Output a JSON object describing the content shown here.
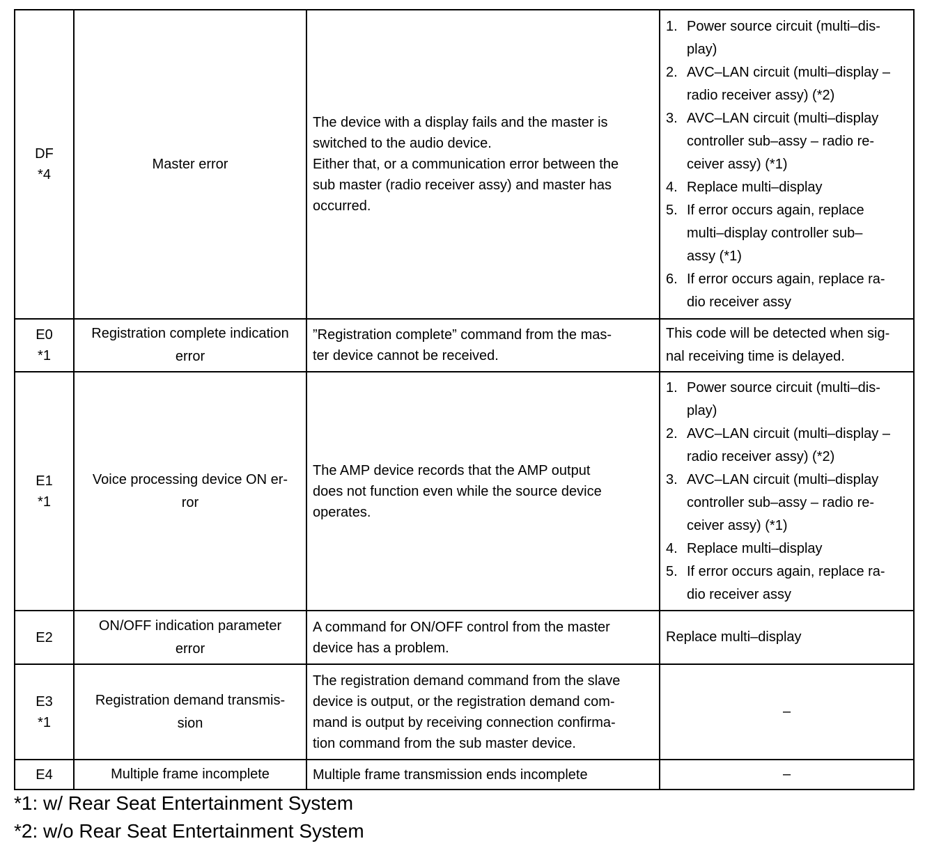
{
  "rows": [
    {
      "code": [
        "DF",
        "*4"
      ],
      "name": [
        "Master error"
      ],
      "desc": [
        "The device with a display fails and the master is",
        "switched to the audio device.",
        "Either that, or a communication error between the",
        "sub master (radio receiver assy) and master has",
        "occurred."
      ],
      "action_list": [
        {
          "n": "1.",
          "lines": [
            "Power source circuit (multi–dis-",
            "play)"
          ]
        },
        {
          "n": "2.",
          "lines": [
            "AVC–LAN circuit (multi–display –",
            "radio receiver assy) (*2)"
          ]
        },
        {
          "n": "3.",
          "lines": [
            "AVC–LAN circuit (multi–display",
            "controller sub–assy – radio re-",
            "ceiver assy) (*1)"
          ]
        },
        {
          "n": "4.",
          "lines": [
            "Replace multi–display"
          ]
        },
        {
          "n": "5.",
          "lines": [
            "If  error occurs again, replace",
            "multi–display controller sub–",
            "assy (*1)"
          ]
        },
        {
          "n": "6.",
          "lines": [
            "If  error occurs again, replace ra-",
            "dio receiver assy"
          ]
        }
      ],
      "h": 444
    },
    {
      "code": [
        "E0",
        "*1"
      ],
      "name": [
        "Registration complete indication",
        "error"
      ],
      "desc": [
        "”Registration complete” command from the mas-",
        "ter device cannot be received."
      ],
      "action": [
        "This code will be detected when sig-",
        "nal receiving time is delayed."
      ],
      "h": 76
    },
    {
      "code": [
        "E1",
        "*1"
      ],
      "name": [
        "Voice processing device ON er-",
        "ror"
      ],
      "desc": [
        "The AMP device records that the AMP output",
        "does not function even while the source device",
        "operates."
      ],
      "action_list": [
        {
          "n": "1.",
          "lines": [
            "Power source circuit (multi–dis-",
            "play)"
          ]
        },
        {
          "n": "2.",
          "lines": [
            "AVC–LAN circuit (multi–display –",
            "radio receiver assy) (*2)"
          ]
        },
        {
          "n": "3.",
          "lines": [
            "AVC–LAN circuit (multi–display",
            "controller sub–assy – radio re-",
            "ceiver assy) (*1)"
          ]
        },
        {
          "n": "4.",
          "lines": [
            "Replace multi–display"
          ]
        },
        {
          "n": "5.",
          "lines": [
            "If  error occurs again, replace ra-",
            "dio receiver assy"
          ]
        }
      ],
      "h": 343
    },
    {
      "code": [
        "E2"
      ],
      "name": [
        "ON/OFF indication parameter",
        "error"
      ],
      "desc": [
        "A command for ON/OFF control from the master",
        "device has a problem."
      ],
      "action": [
        "Replace multi–display"
      ],
      "h": 77
    },
    {
      "code": [
        "E3",
        "*1"
      ],
      "name": [
        "Registration demand transmis-",
        "sion"
      ],
      "desc": [
        "The registration demand command from the slave",
        "device is output, or the registration demand com-",
        "mand is output by receiving connection confirma-",
        "tion command from the sub master device."
      ],
      "action": [
        "–"
      ],
      "center": true,
      "h": 137
    },
    {
      "code": [
        "E4"
      ],
      "name": [
        "Multiple frame incomplete"
      ],
      "desc": [
        "Multiple frame transmission ends incomplete"
      ],
      "action": [
        "–"
      ],
      "center": true,
      "h": 43
    }
  ],
  "footnotes": [
    "*1: w/ Rear Seat Entertainment System",
    "*2: w/o Rear Seat Entertainment System"
  ]
}
